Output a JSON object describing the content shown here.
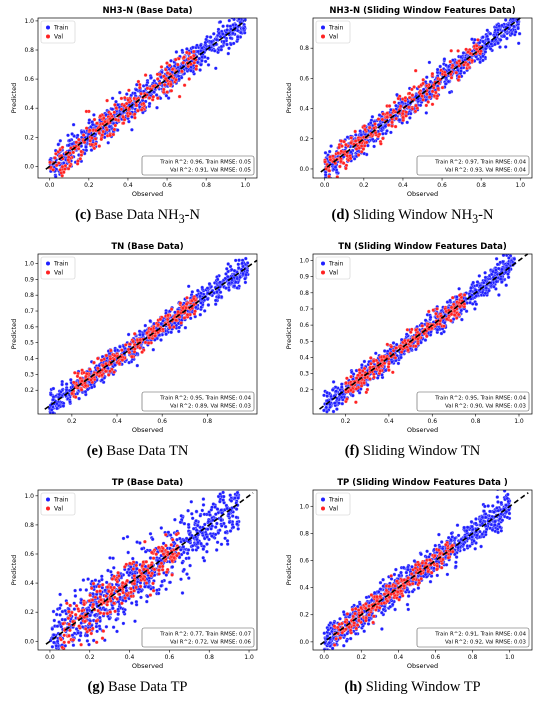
{
  "legend_labels": {
    "train": "Train",
    "val": "Val"
  },
  "colors": {
    "train": "#1f1fff",
    "val": "#ff2222",
    "diagonal": "#000000"
  },
  "chart_data": [
    {
      "type": "scatter",
      "title": "NH3-N (Base Data)",
      "xlabel": "Observed",
      "ylabel": "Predicted",
      "xlim": [
        -0.06,
        1.06
      ],
      "ylim": [
        -0.08,
        1.02
      ],
      "xticks": [
        "0.0",
        "0.2",
        "0.4",
        "0.6",
        "0.8",
        "1.0"
      ],
      "yticks": [
        "0.0",
        "0.2",
        "0.4",
        "0.6",
        "0.8",
        "1.0"
      ],
      "xtick_values": [
        0,
        0.2,
        0.4,
        0.6,
        0.8,
        1.0
      ],
      "ytick_values": [
        0,
        0.2,
        0.4,
        0.6,
        0.8,
        1.0
      ],
      "diagonal": [
        -0.02,
        1.0
      ],
      "metrics": [
        "Train R^2: 0.96, Train RMSE: 0.05",
        "Val R^2: 0.91, Val RMSE: 0.05"
      ],
      "caption": {
        "letter": "(c)",
        "text": "Base Data NH",
        "sub": "3",
        "after": "-N"
      },
      "points": {
        "x_range": [
          0.0,
          1.0
        ],
        "train_noise": 0.05,
        "val_noise": 0.06,
        "val_range": [
          0.0,
          0.75
        ]
      },
      "legend": "top-left",
      "grid": false
    },
    {
      "type": "scatter",
      "title": "NH3-N (Sliding Window Features Data)",
      "xlabel": "Observed",
      "ylabel": "Predicted",
      "xlim": [
        -0.06,
        1.06
      ],
      "ylim": [
        -0.06,
        1.0
      ],
      "xticks": [
        "0.0",
        "0.2",
        "0.4",
        "0.6",
        "0.8",
        "1.0"
      ],
      "yticks": [
        "0.0",
        "0.2",
        "0.4",
        "0.6",
        "0.8"
      ],
      "xtick_values": [
        0,
        0.2,
        0.4,
        0.6,
        0.8,
        1.0
      ],
      "ytick_values": [
        0,
        0.2,
        0.4,
        0.6,
        0.8
      ],
      "diagonal": [
        -0.02,
        1.0
      ],
      "metrics": [
        "Train R^2: 0.97, Train RMSE: 0.04",
        "Val R^2: 0.93, Val RMSE: 0.04"
      ],
      "caption": {
        "letter": "(d)",
        "text": "Sliding Window NH",
        "sub": "3",
        "after": "-N"
      },
      "points": {
        "x_range": [
          0.0,
          1.0
        ],
        "train_noise": 0.045,
        "val_noise": 0.05,
        "val_range": [
          0.0,
          0.8
        ]
      },
      "legend": "top-left",
      "grid": false
    },
    {
      "type": "scatter",
      "title": "TN (Base Data)",
      "xlabel": "Observed",
      "ylabel": "Predicted",
      "xlim": [
        0.05,
        1.02
      ],
      "ylim": [
        0.05,
        1.06
      ],
      "xticks": [
        "0.2",
        "0.4",
        "0.6",
        "0.8"
      ],
      "yticks": [
        "0.2",
        "0.3",
        "0.4",
        "0.5",
        "0.6",
        "0.7",
        "0.8",
        "0.9",
        "1.0"
      ],
      "xtick_values": [
        0.2,
        0.4,
        0.6,
        0.8
      ],
      "ytick_values": [
        0.2,
        0.3,
        0.4,
        0.5,
        0.6,
        0.7,
        0.8,
        0.9,
        1.0
      ],
      "diagonal": [
        0.08,
        1.02
      ],
      "metrics": [
        "Train R^2: 0.95, Train RMSE: 0.04",
        "Val R^2: 0.89, Val RMSE: 0.03"
      ],
      "caption": {
        "letter": "(e)",
        "text": "Base Data TN",
        "sub": "",
        "after": ""
      },
      "points": {
        "x_range": [
          0.1,
          0.98
        ],
        "train_noise": 0.04,
        "val_noise": 0.035,
        "val_range": [
          0.2,
          0.75
        ]
      },
      "legend": "top-left",
      "grid": false
    },
    {
      "type": "scatter",
      "title": "TN (Sliding Window Features Data)",
      "xlabel": "Observed",
      "ylabel": "Predicted",
      "xlim": [
        0.05,
        1.06
      ],
      "ylim": [
        0.05,
        1.04
      ],
      "xticks": [
        "0.2",
        "0.4",
        "0.6",
        "0.8",
        "1.0"
      ],
      "yticks": [
        "0.2",
        "0.3",
        "0.4",
        "0.5",
        "0.6",
        "0.7",
        "0.8",
        "0.9",
        "1.0"
      ],
      "xtick_values": [
        0.2,
        0.4,
        0.6,
        0.8,
        1.0
      ],
      "ytick_values": [
        0.2,
        0.3,
        0.4,
        0.5,
        0.6,
        0.7,
        0.8,
        0.9,
        1.0
      ],
      "diagonal": [
        0.08,
        1.04
      ],
      "metrics": [
        "Train R^2: 0.95, Train RMSE: 0.04",
        "Val R^2: 0.90, Val RMSE: 0.03"
      ],
      "caption": {
        "letter": "(f)",
        "text": "Sliding Window TN",
        "sub": "",
        "after": ""
      },
      "points": {
        "x_range": [
          0.1,
          0.98
        ],
        "train_noise": 0.04,
        "val_noise": 0.035,
        "val_range": [
          0.2,
          0.75
        ]
      },
      "legend": "top-left",
      "grid": false
    },
    {
      "type": "scatter",
      "title": "TP (Base Data)",
      "xlabel": "Observed",
      "ylabel": "Predicted",
      "xlim": [
        -0.06,
        1.04
      ],
      "ylim": [
        -0.06,
        1.04
      ],
      "xticks": [
        "0.0",
        "0.2",
        "0.4",
        "0.6",
        "0.8",
        "1.0"
      ],
      "yticks": [
        "0.0",
        "0.2",
        "0.4",
        "0.6",
        "0.8",
        "1.0"
      ],
      "xtick_values": [
        0,
        0.2,
        0.4,
        0.6,
        0.8,
        1.0
      ],
      "ytick_values": [
        0,
        0.2,
        0.4,
        0.6,
        0.8,
        1.0
      ],
      "diagonal": [
        -0.02,
        1.02
      ],
      "metrics": [
        "Train R^2: 0.77, Train RMSE: 0.07",
        "Val R^2: 0.72, Val RMSE: 0.06"
      ],
      "caption": {
        "letter": "(g)",
        "text": "Base Data TP",
        "sub": "",
        "after": ""
      },
      "points": {
        "x_range": [
          0.0,
          0.95
        ],
        "train_noise": 0.1,
        "val_noise": 0.08,
        "val_range": [
          0.05,
          0.65
        ]
      },
      "legend": "top-left",
      "grid": false
    },
    {
      "type": "scatter",
      "title": "TP   (Sliding Window Features Data )",
      "xlabel": "Observed",
      "ylabel": "Predicted",
      "xlim": [
        -0.06,
        1.12
      ],
      "ylim": [
        -0.06,
        1.12
      ],
      "xticks": [
        "0.0",
        "0.2",
        "0.4",
        "0.6",
        "0.8",
        "1.0"
      ],
      "yticks": [
        "0.0",
        "0.2",
        "0.4",
        "0.6",
        "0.8",
        "1.0"
      ],
      "xtick_values": [
        0,
        0.2,
        0.4,
        0.6,
        0.8,
        1.0
      ],
      "ytick_values": [
        0,
        0.2,
        0.4,
        0.6,
        0.8,
        1.0
      ],
      "diagonal": [
        -0.02,
        1.1
      ],
      "metrics": [
        "Train R^2: 0.91, Train RMSE: 0.04",
        "Val R^2: 0.92, Val RMSE: 0.03"
      ],
      "caption": {
        "letter": "(h)",
        "text": "Sliding Window TP",
        "sub": "",
        "after": ""
      },
      "points": {
        "x_range": [
          0.0,
          1.0
        ],
        "train_noise": 0.06,
        "val_noise": 0.04,
        "val_range": [
          0.05,
          0.7
        ]
      },
      "legend": "top-left",
      "grid": false
    }
  ]
}
